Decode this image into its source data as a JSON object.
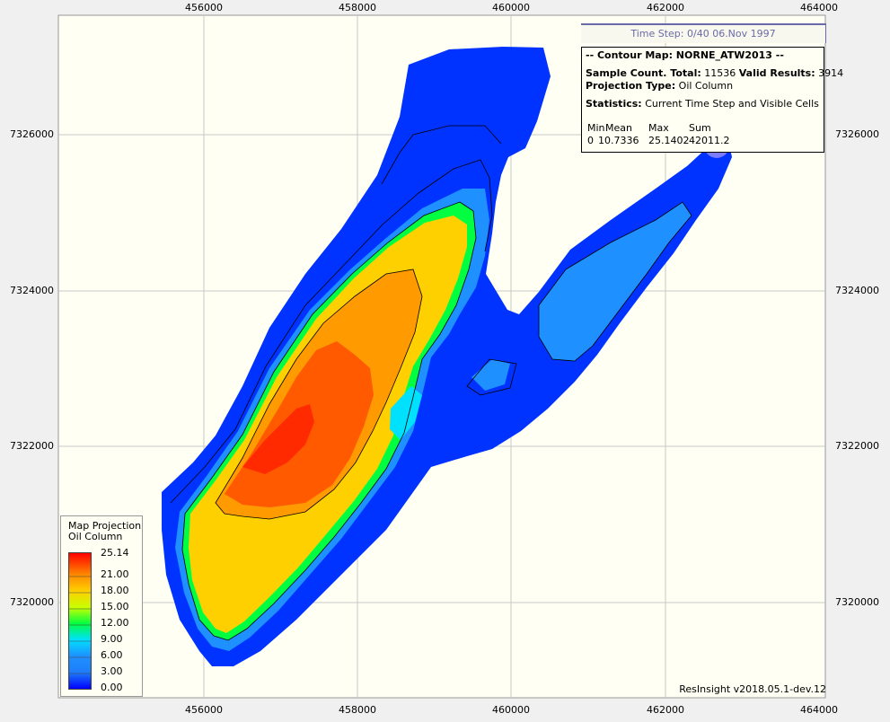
{
  "window": {
    "time_step": "Time Step: 0/40 06.Nov 1997",
    "version": "ResInsight v2018.05.1-dev.12"
  },
  "axes": {
    "x_ticks": [
      "456000",
      "458000",
      "460000",
      "462000",
      "464000"
    ],
    "y_ticks": [
      "7326000",
      "7324000",
      "7322000",
      "7320000"
    ]
  },
  "info": {
    "title": "-- Contour Map: NORNE_ATW2013 --",
    "sample_count_label": "Sample Count. Total:",
    "sample_count_total": "11536",
    "valid_results_label": "Valid Results:",
    "valid_results": "3914",
    "projection_type_label": "Projection Type:",
    "projection_type": "Oil Column",
    "statistics_label": "Statistics:",
    "statistics_scope": "Current Time Step and Visible Cells",
    "stats_headers": [
      "Min",
      "Mean",
      "Max",
      "Sum"
    ],
    "stats_values": [
      "0",
      "10.7336",
      "25.1402",
      "42011.2"
    ]
  },
  "legend": {
    "title_line1": "Map Projection",
    "title_line2": "Oil Column",
    "ticks": [
      "25.14",
      "21.00",
      "18.00",
      "15.00",
      "12.00",
      "9.00",
      "6.00",
      "3.00",
      "0.00"
    ]
  },
  "colors": {
    "background": "#fffff4",
    "frame": "#f0f0f0",
    "grid": "#c8c8c8",
    "scale": [
      "#0000ff",
      "#1e7dfa",
      "#00e0ff",
      "#00ff40",
      "#c8ff00",
      "#ffd000",
      "#ff9a00",
      "#ff4a00",
      "#ff0000"
    ]
  }
}
